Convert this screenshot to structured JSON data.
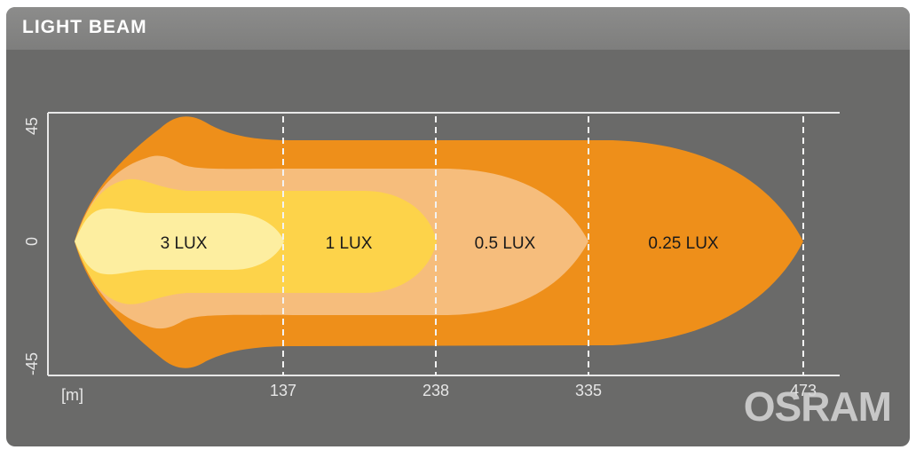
{
  "header": {
    "title": "LIGHT BEAM"
  },
  "y_axis": {
    "ticks": [
      "45",
      "0",
      "-45"
    ]
  },
  "x_axis": {
    "unit": "[m]",
    "ticks": [
      "137",
      "238",
      "335",
      "473"
    ]
  },
  "zones": [
    {
      "label": "3 LUX",
      "distance_m": 137,
      "color": "#fdeea0"
    },
    {
      "label": "1 LUX",
      "distance_m": 238,
      "color": "#fdd34a"
    },
    {
      "label": "0.5 LUX",
      "distance_m": 335,
      "color": "#f6bd7c"
    },
    {
      "label": "0.25 LUX",
      "distance_m": 473,
      "color": "#ee8f1a"
    }
  ],
  "brand": {
    "logo_text": "OSRAM"
  }
}
